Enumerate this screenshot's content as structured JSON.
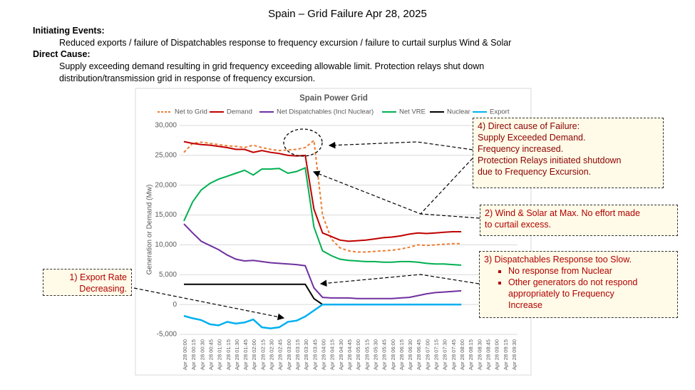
{
  "slide": {
    "title": "Spain – Grid Failure Apr 28, 2025",
    "initiating_events": {
      "label": "Initiating Events:",
      "text": "Reduced exports / failure of Dispatchables response to frequency excursion / failure to curtail surplus Wind & Solar"
    },
    "direct_cause": {
      "label": "Direct Cause:",
      "lines": [
        "Supply exceeding demand resulting in grid frequency exceeding allowable limit. Protection relays shut down",
        "distribution/transmission grid in response of frequency excursion."
      ]
    }
  },
  "callouts": [
    {
      "lines": [
        "1) Export Rate",
        "Decreasing."
      ]
    },
    {
      "lines": [
        "2) Wind & Solar at Max. No effort made",
        "to curtail excess."
      ]
    },
    {
      "lines": [
        "3) Dispatchables Response too Slow."
      ],
      "bullets": [
        "No response from Nuclear",
        "Other generators do not respond appropriately to Frequency Increase"
      ]
    },
    {
      "lines": [
        "4) Direct cause of Failure:",
        "Supply Exceeded Demand.",
        "Frequency increased.",
        "Protection Relays initiated shutdown",
        "due to Frequency Excursion."
      ]
    }
  ],
  "chart_data": {
    "type": "line",
    "title": "Spain Power Grid",
    "y_label": "Generation or Demand (Mw)",
    "categories": [
      "Apr 28 00:00",
      "Apr 28 00:15",
      "Apr 28 00:30",
      "Apr 28 00:45",
      "Apr 28 01:00",
      "Apr 28 01:15",
      "Apr 28 01:30",
      "Apr 28 01:45",
      "Apr 28 02:00",
      "Apr 28 02:15",
      "Apr 28 02:30",
      "Apr 28 02:45",
      "Apr 28 03:00",
      "Apr 28 03:15",
      "Apr 28 03:30",
      "Apr 28 03:45",
      "Apr 28 04:00",
      "Apr 28 04:15",
      "Apr 28 04:30",
      "Apr 28 04:45",
      "Apr 28 05:00",
      "Apr 28 05:15",
      "Apr 28 05:30",
      "Apr 28 05:45",
      "Apr 28 06:00",
      "Apr 28 06:15",
      "Apr 28 06:30",
      "Apr 28 06:45",
      "Apr 28 07:00",
      "Apr 28 07:15",
      "Apr 28 07:30",
      "Apr 28 07:45",
      "Apr 28 08:00",
      "Apr 28 08:15",
      "Apr 28 08:30",
      "Apr 28 08:45",
      "Apr 28 09:00",
      "Apr 28 09:15",
      "Apr 28 09:30"
    ],
    "series": [
      {
        "name": "Net to Grid",
        "color": "#ed7d31",
        "dashed": true,
        "values": [
          25500,
          27000,
          27200,
          27000,
          26800,
          26600,
          26500,
          26300,
          26700,
          26300,
          26000,
          25800,
          25900,
          26000,
          26300,
          27500,
          15000,
          11000,
          9500,
          9000,
          8800,
          8800,
          8900,
          9000,
          9100,
          9300,
          9600,
          10000,
          9900,
          10000,
          10100,
          10200,
          10200,
          null,
          null,
          null,
          null,
          null,
          null
        ]
      },
      {
        "name": "Demand",
        "color": "#c00000",
        "values": [
          27300,
          27000,
          26800,
          26700,
          26500,
          26300,
          26000,
          26000,
          25500,
          25800,
          25500,
          25300,
          25000,
          24900,
          25000,
          16000,
          12000,
          11400,
          10800,
          10600,
          10700,
          10800,
          11000,
          11200,
          11300,
          11500,
          11800,
          12000,
          11900,
          12000,
          12100,
          12200,
          12200,
          null,
          null,
          null,
          null,
          null,
          null
        ]
      },
      {
        "name": "Net Dispatchables (Incl Nuclear)",
        "color": "#7030a0",
        "values": [
          13500,
          12000,
          10600,
          9900,
          9200,
          8300,
          7600,
          7300,
          7400,
          7200,
          7000,
          6900,
          6800,
          6700,
          6500,
          2800,
          1200,
          1100,
          1100,
          1100,
          1000,
          1000,
          1000,
          1000,
          1000,
          1100,
          1200,
          1500,
          1800,
          2000,
          2100,
          2200,
          2300,
          null,
          null,
          null,
          null,
          null,
          null
        ]
      },
      {
        "name": "Net VRE",
        "color": "#00b050",
        "values": [
          14000,
          17200,
          19200,
          20300,
          21000,
          21500,
          22000,
          22500,
          21700,
          22700,
          22700,
          22800,
          22000,
          22300,
          22900,
          13000,
          9000,
          8200,
          7600,
          7400,
          7300,
          7200,
          7200,
          7100,
          7100,
          7200,
          7200,
          7100,
          6900,
          6800,
          6800,
          6700,
          6600,
          null,
          null,
          null,
          null,
          null,
          null
        ]
      },
      {
        "name": "Nuclear",
        "color": "#000000",
        "values": [
          3400,
          3400,
          3400,
          3400,
          3400,
          3400,
          3400,
          3400,
          3400,
          3400,
          3400,
          3400,
          3400,
          3400,
          3400,
          1000,
          0,
          0,
          0,
          0,
          0,
          0,
          0,
          0,
          0,
          0,
          0,
          0,
          0,
          0,
          0,
          0,
          0,
          null,
          null,
          null,
          null,
          null,
          null
        ]
      },
      {
        "name": "Export",
        "color": "#00b0f0",
        "values": [
          -1900,
          -2300,
          -2600,
          -3300,
          -3500,
          -2900,
          -3200,
          -3000,
          -2500,
          -3800,
          -4000,
          -3800,
          -2900,
          -2700,
          -2000,
          -1000,
          0,
          0,
          0,
          0,
          0,
          0,
          0,
          0,
          0,
          0,
          0,
          0,
          0,
          0,
          0,
          0,
          0,
          null,
          null,
          null,
          null,
          null,
          null
        ]
      }
    ],
    "ylim": [
      -5000,
      30000
    ],
    "yticks": [
      {
        "value": -5000,
        "label": "-5,000"
      },
      0,
      {
        "value": 5000,
        "label": "5,000"
      },
      {
        "value": 10000,
        "label": "10,000"
      },
      {
        "value": 15000,
        "label": "15,000"
      },
      {
        "value": 20000,
        "label": "20,000"
      },
      {
        "value": 25000,
        "label": "25,000"
      },
      {
        "value": 30000,
        "label": "30,000"
      }
    ],
    "grid": true,
    "legend": "top"
  }
}
